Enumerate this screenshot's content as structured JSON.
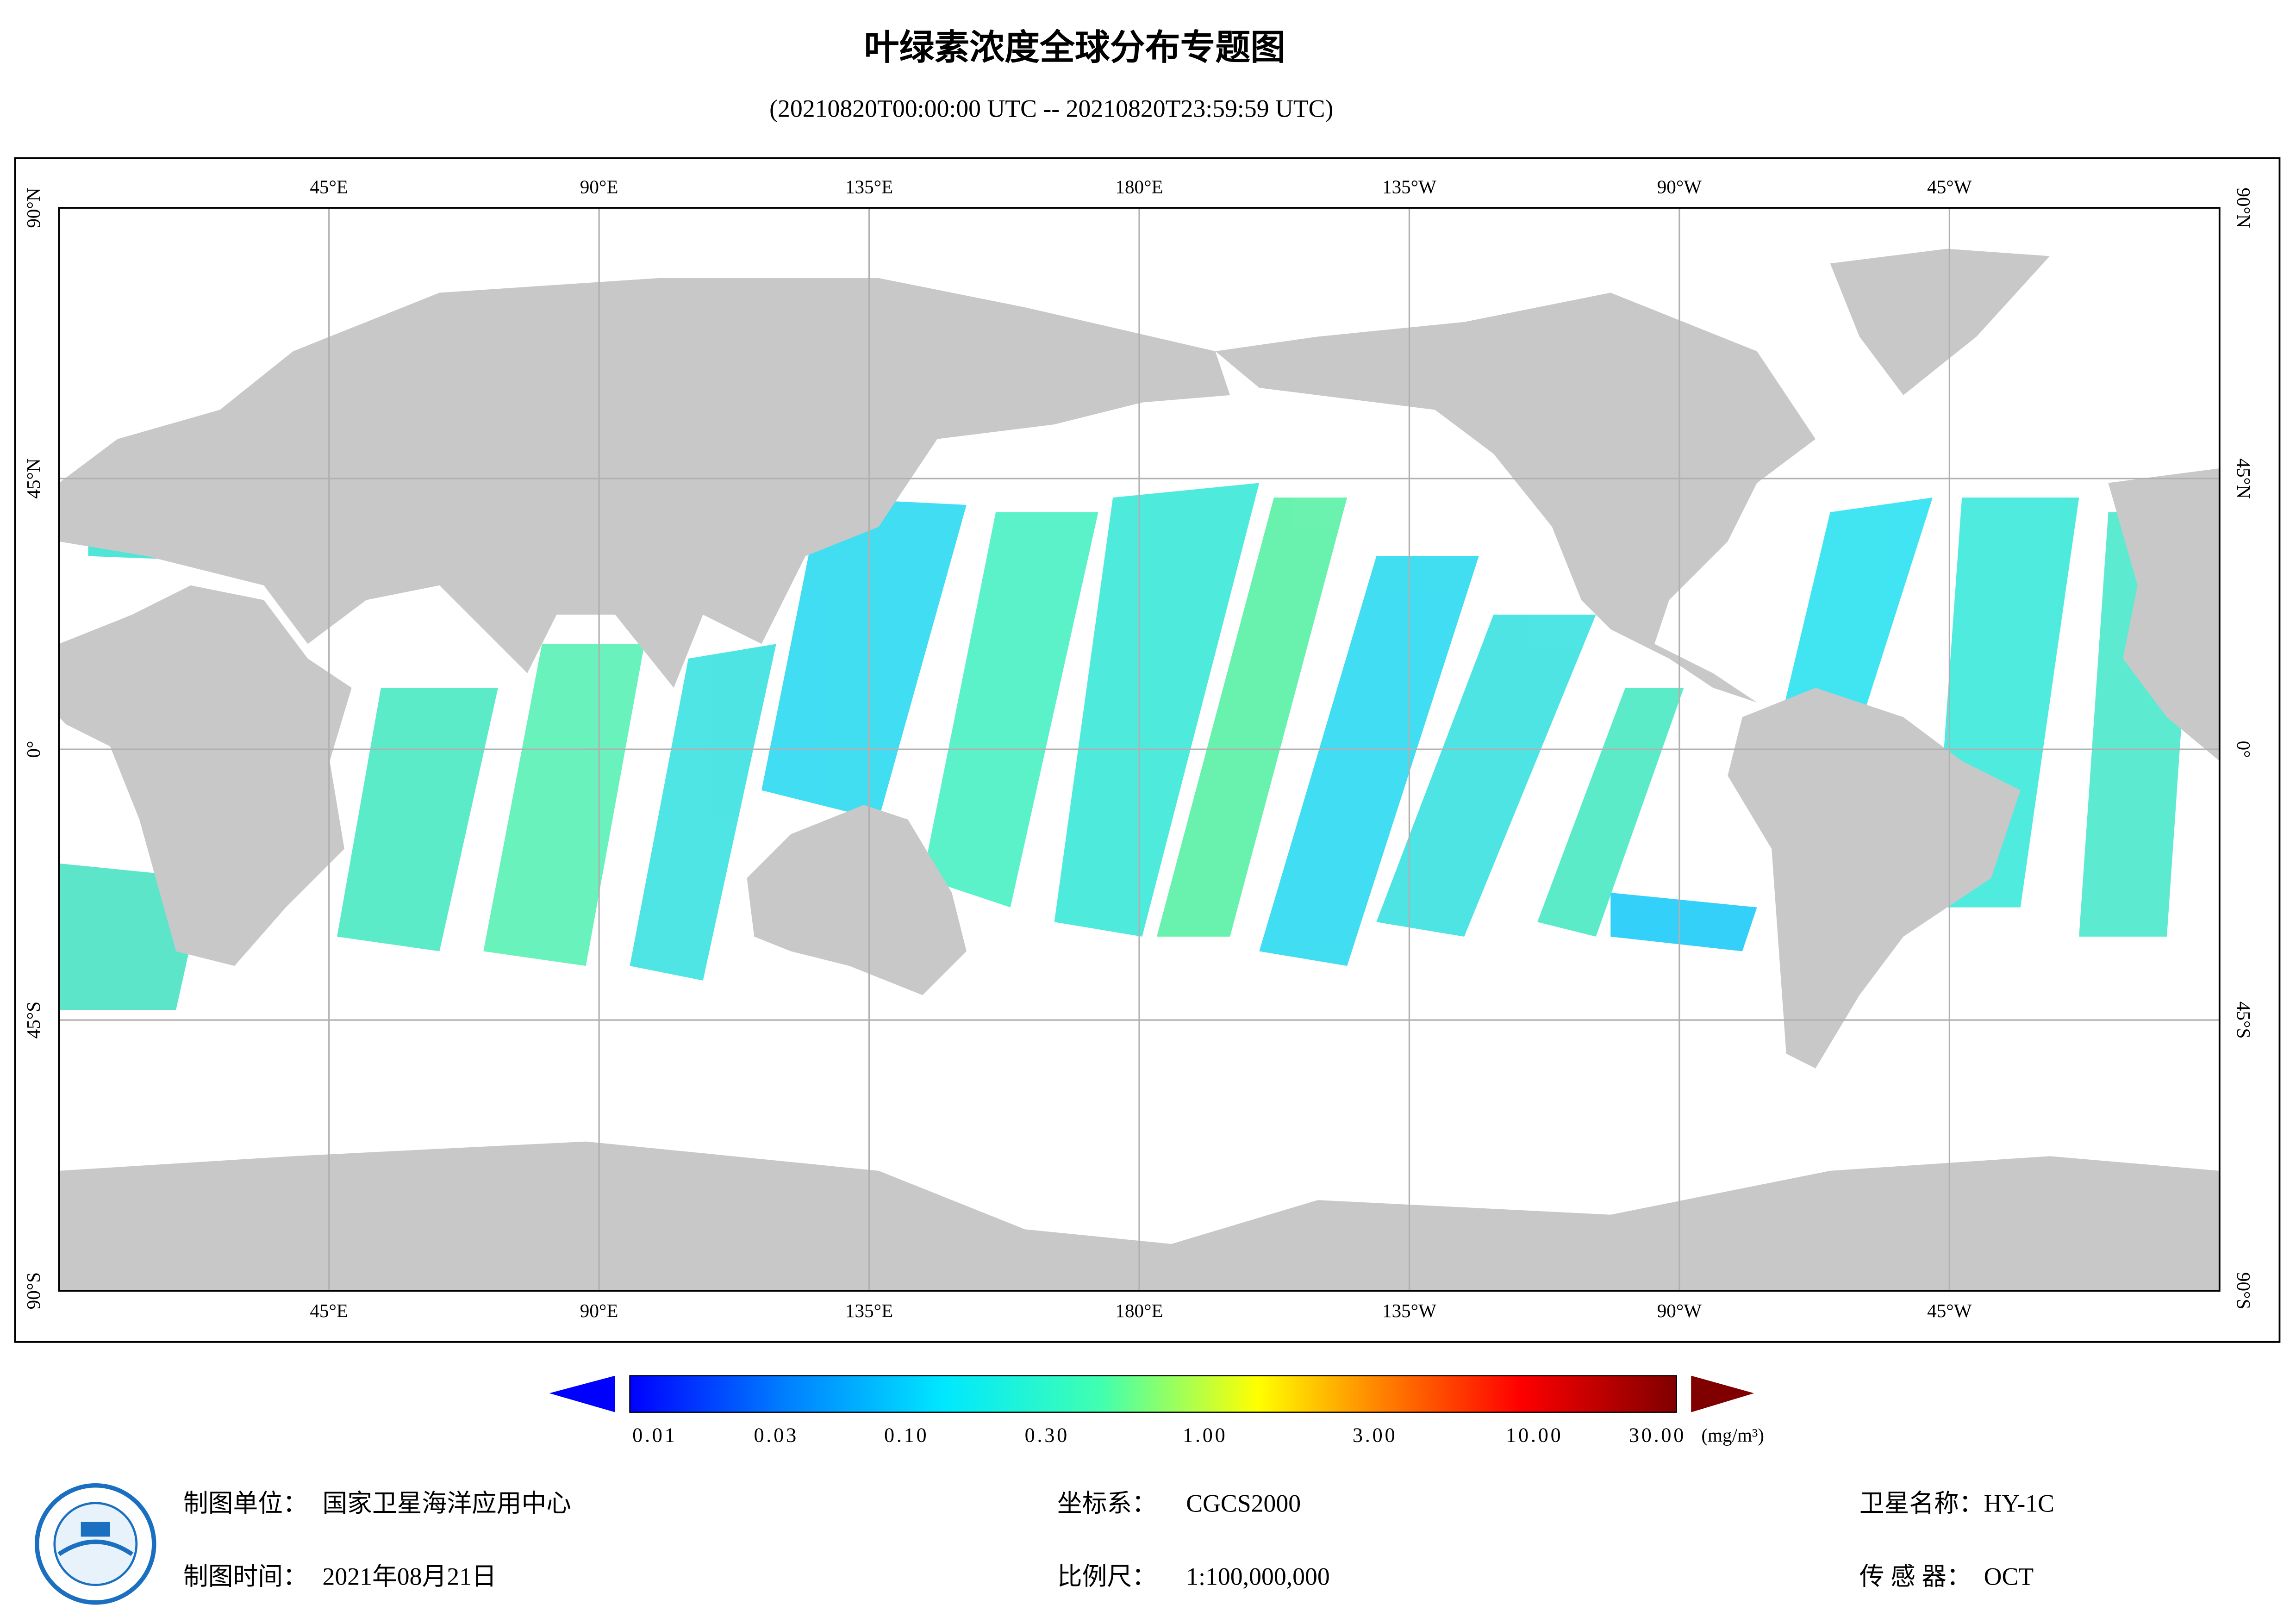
{
  "header": {
    "title": "叶绿素浓度全球分布专题图",
    "subtitle": "(20210820T00:00:00 UTC -- 20210820T23:59:59 UTC)"
  },
  "map": {
    "lon_labels": [
      "45°E",
      "90°E",
      "135°E",
      "180°E",
      "135°W",
      "90°W",
      "45°W"
    ],
    "lat_labels": [
      "90°N",
      "45°N",
      "0°",
      "45°S",
      "90°S"
    ]
  },
  "colorbar": {
    "labels": [
      "0.01",
      "0.03",
      "0.10",
      "0.30",
      "1.00",
      "3.00",
      "10.00",
      "30.00"
    ],
    "unit": "(mg/m³)"
  },
  "footer": {
    "items": [
      {
        "label": "制图单位：",
        "value": "国家卫星海洋应用中心"
      },
      {
        "label": "制图时间：",
        "value": "2021年08月21日"
      },
      {
        "label": "坐标系：",
        "value": "CGCS2000"
      },
      {
        "label": "比例尺：",
        "value": "1:100,000,000"
      },
      {
        "label": "卫星名称：",
        "value": "HY-1C"
      },
      {
        "label": "传 感 器：",
        "value": "OCT"
      }
    ]
  }
}
